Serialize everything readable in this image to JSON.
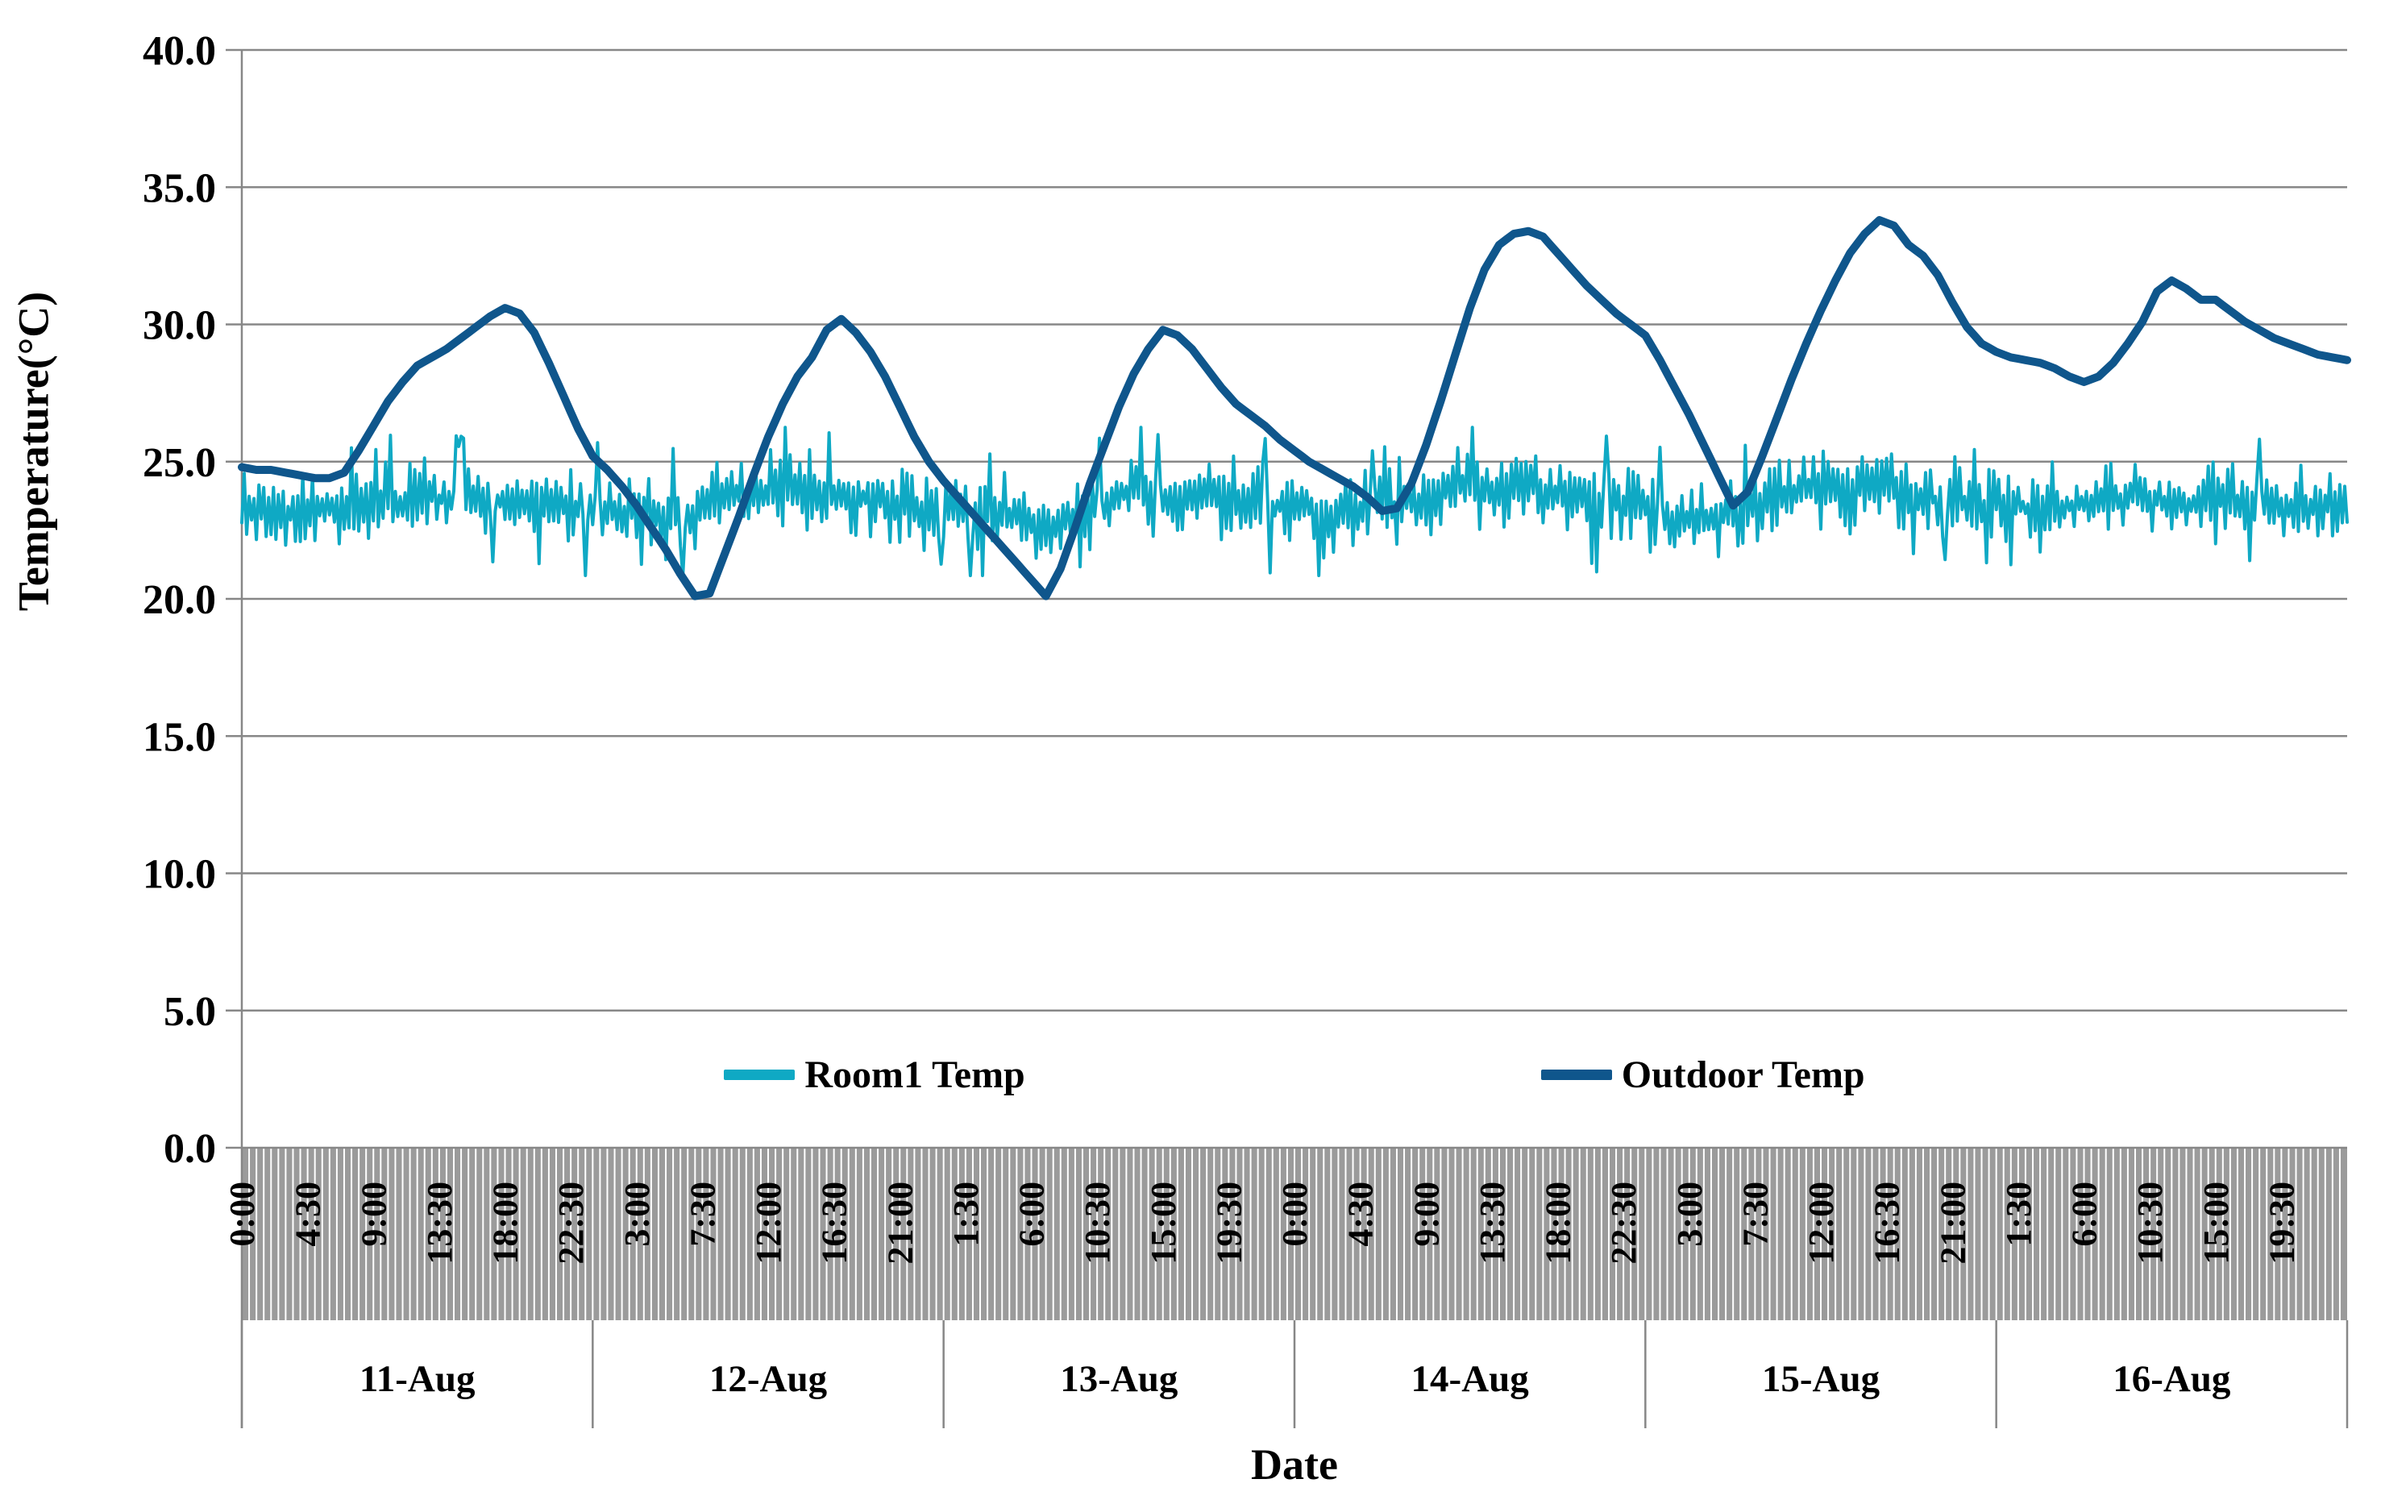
{
  "page": {
    "background": "#FFFFFF"
  },
  "chart_data": {
    "type": "line",
    "title": "",
    "ylabel": "Temperature(°C)",
    "xlabel": "Date",
    "ylim": [
      0,
      40
    ],
    "ytick_step": 5,
    "ytick_labels": [
      "40.0",
      "35.0",
      "30.0",
      "25.0",
      "20.0",
      "15.0",
      "10.0",
      "5.0",
      "0.0"
    ],
    "grid": "horizontal-only",
    "axis_color": "#878787",
    "tick_band_fill": "#9B9B9B",
    "tick_band_line_color": "#FFFFFF",
    "x_days": [
      "11-Aug",
      "12-Aug",
      "13-Aug",
      "14-Aug",
      "15-Aug",
      "16-Aug"
    ],
    "x_minor_tick_minutes": 30,
    "x_time_label_interval_hours": 4.5,
    "x_time_labels": [
      "0:00",
      "4:30",
      "9:00",
      "13:30",
      "18:00",
      "22:30",
      "3:00",
      "7:30",
      "12:00",
      "16:30",
      "21:00",
      "1:30",
      "6:00",
      "10:30",
      "15:00",
      "19:30",
      "0:00",
      "4:30",
      "9:00",
      "13:30",
      "18:00",
      "22:30",
      "3:00",
      "7:30",
      "12:00",
      "16:30",
      "21:00",
      "1:30",
      "6:00",
      "10:30",
      "15:00",
      "19:30"
    ],
    "legend_position": "inside-bottom",
    "series": [
      {
        "name": "Room1 Temp",
        "color": "#0FA9C4",
        "stroke_width": 4,
        "style": "noisy",
        "hourly_values": [
          23.3,
          23.2,
          23.2,
          23.1,
          23.2,
          23.3,
          23.3,
          23.4,
          23.5,
          23.5,
          23.6,
          23.5,
          23.6,
          23.7,
          23.6,
          23.5,
          23.6,
          23.7,
          23.6,
          23.5,
          23.4,
          23.4,
          23.3,
          23.4,
          23.4,
          23.3,
          23.2,
          23.2,
          23.1,
          23.0,
          23.1,
          23.2,
          23.5,
          23.8,
          23.9,
          23.8,
          23.9,
          24.0,
          23.8,
          23.7,
          23.8,
          23.7,
          23.6,
          23.6,
          23.5,
          23.4,
          23.3,
          23.2,
          23.2,
          23.3,
          23.2,
          23.1,
          23.0,
          22.9,
          22.8,
          22.7,
          22.8,
          23.0,
          23.3,
          23.5,
          23.8,
          23.9,
          23.8,
          23.7,
          23.8,
          23.7,
          23.7,
          23.6,
          23.5,
          23.5,
          23.4,
          23.4,
          23.4,
          23.3,
          23.2,
          23.1,
          23.2,
          23.3,
          23.3,
          23.4,
          23.6,
          23.8,
          24.0,
          24.1,
          24.2,
          24.1,
          24.0,
          24.1,
          24.2,
          24.0,
          23.9,
          23.8,
          23.7,
          23.6,
          23.5,
          23.4,
          23.3,
          23.1,
          22.9,
          22.8,
          22.9,
          23.0,
          23.1,
          23.2,
          23.4,
          23.6,
          23.8,
          24.0,
          24.1,
          24.2,
          24.1,
          24.0,
          24.1,
          24.0,
          23.8,
          23.7,
          23.6,
          23.5,
          23.4,
          23.4,
          23.4,
          23.4,
          23.3,
          23.3,
          23.4,
          23.4,
          23.5,
          23.5,
          23.6,
          23.7,
          23.8,
          23.7,
          23.5,
          23.4,
          23.5,
          23.6,
          23.6,
          23.5,
          23.5,
          23.4,
          23.5,
          23.4,
          23.4,
          23.3,
          23.4
        ],
        "noise": {
          "seed": 1971,
          "samples_per_hour": 6,
          "amplitude": 0.78,
          "spike_rate": 0.024,
          "dip_rate": 0.018,
          "max": 26.25,
          "min": 20.85
        }
      },
      {
        "name": "Outdoor Temp",
        "color": "#0F568C",
        "stroke_width": 10,
        "style": "smooth",
        "hourly_values": [
          24.8,
          24.7,
          24.7,
          24.6,
          24.5,
          24.4,
          24.4,
          24.6,
          25.4,
          26.3,
          27.2,
          27.9,
          28.5,
          28.8,
          29.1,
          29.5,
          29.9,
          30.3,
          30.6,
          30.4,
          29.7,
          28.6,
          27.4,
          26.2,
          25.2,
          24.7,
          24.1,
          23.4,
          22.6,
          21.8,
          20.9,
          20.1,
          20.2,
          21.6,
          23.0,
          24.5,
          25.9,
          27.1,
          28.1,
          28.8,
          29.8,
          30.2,
          29.7,
          29.0,
          28.1,
          27.0,
          25.9,
          25.0,
          24.3,
          23.7,
          23.1,
          22.5,
          21.9,
          21.3,
          20.7,
          20.1,
          21.1,
          22.6,
          24.2,
          25.6,
          27.0,
          28.2,
          29.1,
          29.8,
          29.6,
          29.1,
          28.4,
          27.7,
          27.1,
          26.7,
          26.3,
          25.8,
          25.4,
          25.0,
          24.7,
          24.4,
          24.1,
          23.7,
          23.2,
          23.3,
          24.2,
          25.6,
          27.2,
          28.9,
          30.6,
          32.0,
          32.9,
          33.3,
          33.4,
          33.2,
          32.6,
          32.0,
          31.4,
          30.9,
          30.4,
          30.0,
          29.6,
          28.7,
          27.7,
          26.7,
          25.6,
          24.5,
          23.4,
          23.9,
          25.2,
          26.6,
          28.0,
          29.3,
          30.5,
          31.6,
          32.6,
          33.3,
          33.8,
          33.6,
          32.9,
          32.5,
          31.8,
          30.8,
          29.9,
          29.3,
          29.0,
          28.8,
          28.7,
          28.6,
          28.4,
          28.1,
          27.9,
          28.1,
          28.6,
          29.3,
          30.1,
          31.2,
          31.6,
          31.3,
          30.9,
          30.9,
          30.5,
          30.1,
          29.8,
          29.5,
          29.3,
          29.1,
          28.9,
          28.8,
          28.7
        ]
      }
    ]
  }
}
